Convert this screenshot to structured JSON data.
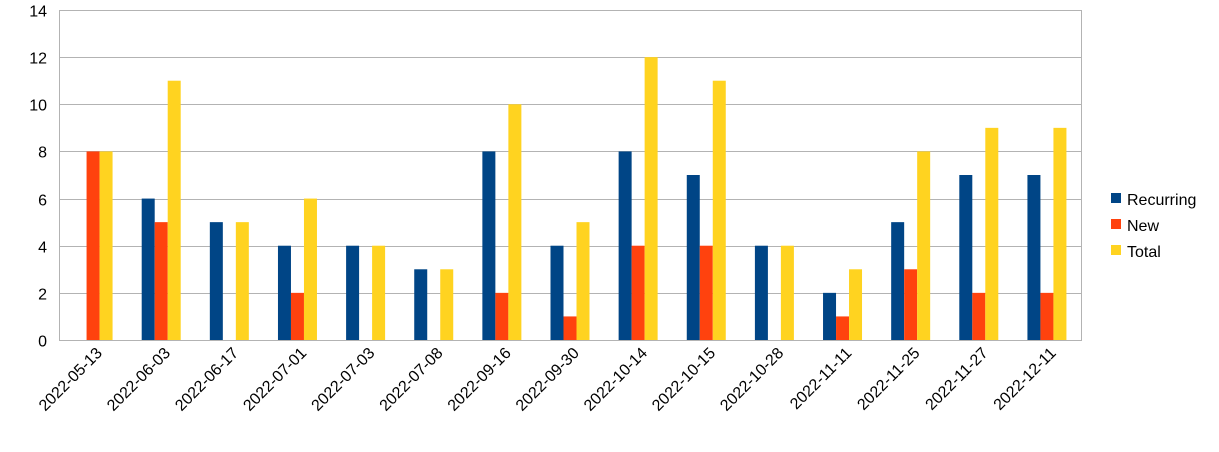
{
  "chart_data": {
    "type": "bar",
    "categories": [
      "2022-05-13",
      "2022-06-03",
      "2022-06-17",
      "2022-07-01",
      "2022-07-03",
      "2022-07-08",
      "2022-09-16",
      "2022-09-30",
      "2022-10-14",
      "2022-10-15",
      "2022-10-28",
      "2022-11-11",
      "2022-11-25",
      "2022-11-27",
      "2022-12-11"
    ],
    "series": [
      {
        "name": "Recurring",
        "color": "#004586",
        "values": [
          0,
          6,
          5,
          4,
          4,
          3,
          8,
          4,
          8,
          7,
          4,
          2,
          5,
          7,
          7
        ]
      },
      {
        "name": "New",
        "color": "#ff420e",
        "values": [
          8,
          5,
          0,
          2,
          0,
          0,
          2,
          1,
          4,
          4,
          0,
          1,
          3,
          2,
          2
        ]
      },
      {
        "name": "Total",
        "color": "#ffd320",
        "values": [
          8,
          11,
          5,
          6,
          4,
          3,
          10,
          5,
          12,
          11,
          4,
          3,
          8,
          9,
          9
        ]
      }
    ],
    "title": "",
    "xlabel": "",
    "ylabel": "",
    "ylim": [
      0,
      14
    ],
    "yticks": [
      0,
      2,
      4,
      6,
      8,
      10,
      12,
      14
    ],
    "grid": true,
    "legend_position": "right"
  }
}
